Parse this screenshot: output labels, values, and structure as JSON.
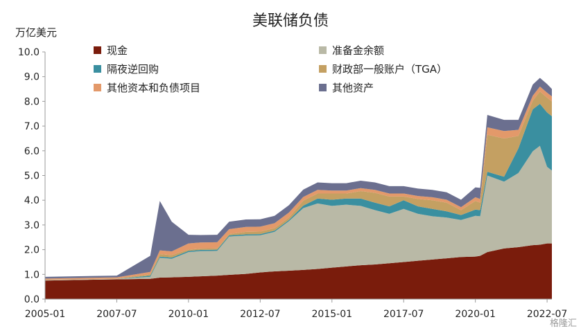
{
  "chart_data": {
    "type": "area",
    "title": "美联储负债",
    "ylabel": "万亿美元",
    "xlabel": "",
    "ylim": [
      0,
      10
    ],
    "yticks": [
      "0.0",
      "1.0",
      "2.0",
      "3.0",
      "4.0",
      "5.0",
      "6.0",
      "7.0",
      "8.0",
      "9.0",
      "10.0"
    ],
    "xtick_labels": [
      "2005-01",
      "2007-07",
      "2010-01",
      "2012-07",
      "2015-01",
      "2017-07",
      "2020-01",
      "2022-07"
    ],
    "x": [
      "2005-01",
      "2007-07",
      "2008-09",
      "2009-01",
      "2009-06",
      "2010-01",
      "2010-06",
      "2011-01",
      "2011-06",
      "2012-01",
      "2012-07",
      "2013-01",
      "2013-07",
      "2014-01",
      "2014-07",
      "2015-01",
      "2015-07",
      "2016-01",
      "2016-07",
      "2017-01",
      "2017-07",
      "2018-01",
      "2018-07",
      "2019-01",
      "2019-07",
      "2020-01",
      "2020-03",
      "2020-06",
      "2021-01",
      "2021-07",
      "2022-01",
      "2022-04",
      "2022-07",
      "2022-09"
    ],
    "series": [
      {
        "name": "现金",
        "color": "#7a1c0c",
        "values": [
          0.75,
          0.8,
          0.82,
          0.87,
          0.88,
          0.9,
          0.92,
          0.95,
          0.98,
          1.02,
          1.08,
          1.12,
          1.15,
          1.18,
          1.22,
          1.27,
          1.32,
          1.37,
          1.4,
          1.45,
          1.5,
          1.55,
          1.6,
          1.65,
          1.7,
          1.72,
          1.75,
          1.9,
          2.05,
          2.1,
          2.18,
          2.2,
          2.25,
          2.25
        ]
      },
      {
        "name": "准备金余额",
        "color": "#b9b9a6",
        "values": [
          0.02,
          0.02,
          0.08,
          0.8,
          0.75,
          1.0,
          1.02,
          1.0,
          1.55,
          1.55,
          1.5,
          1.6,
          2.0,
          2.5,
          2.65,
          2.5,
          2.5,
          2.4,
          2.2,
          2.0,
          2.15,
          1.9,
          1.75,
          1.65,
          1.5,
          1.65,
          1.6,
          3.1,
          2.7,
          3.0,
          3.8,
          4.0,
          3.1,
          2.95
        ]
      },
      {
        "name": "隔夜逆回购",
        "color": "#3a8fa0",
        "values": [
          0.0,
          0.0,
          0.05,
          0.05,
          0.05,
          0.05,
          0.05,
          0.05,
          0.05,
          0.05,
          0.05,
          0.05,
          0.05,
          0.1,
          0.2,
          0.25,
          0.25,
          0.3,
          0.3,
          0.3,
          0.35,
          0.3,
          0.3,
          0.25,
          0.2,
          0.25,
          0.25,
          0.15,
          0.2,
          1.0,
          1.7,
          1.7,
          2.2,
          2.2
        ]
      },
      {
        "name": "财政部一般账户（TGA）",
        "color": "#c4a062",
        "values": [
          0.01,
          0.01,
          0.05,
          0.1,
          0.1,
          0.05,
          0.05,
          0.05,
          0.05,
          0.1,
          0.1,
          0.1,
          0.1,
          0.2,
          0.2,
          0.25,
          0.2,
          0.3,
          0.4,
          0.4,
          0.15,
          0.3,
          0.35,
          0.35,
          0.2,
          0.35,
          0.3,
          1.5,
          1.55,
          0.5,
          0.35,
          0.5,
          0.6,
          0.6
        ]
      },
      {
        "name": "其他资本和负债项目",
        "color": "#e3996a",
        "values": [
          0.05,
          0.05,
          0.1,
          0.15,
          0.15,
          0.25,
          0.25,
          0.25,
          0.2,
          0.2,
          0.2,
          0.2,
          0.2,
          0.15,
          0.15,
          0.12,
          0.12,
          0.12,
          0.12,
          0.12,
          0.12,
          0.12,
          0.12,
          0.12,
          0.12,
          0.15,
          0.15,
          0.3,
          0.3,
          0.25,
          0.2,
          0.2,
          0.2,
          0.2
        ]
      },
      {
        "name": "其他资产",
        "color": "#6b6f8f",
        "values": [
          0.07,
          0.07,
          0.65,
          2.0,
          1.2,
          0.35,
          0.3,
          0.3,
          0.3,
          0.3,
          0.3,
          0.3,
          0.3,
          0.3,
          0.3,
          0.3,
          0.3,
          0.3,
          0.3,
          0.3,
          0.3,
          0.3,
          0.3,
          0.3,
          0.3,
          0.4,
          0.45,
          0.5,
          0.45,
          0.4,
          0.45,
          0.35,
          0.35,
          0.3
        ]
      }
    ],
    "legend_position": "top-left, two columns",
    "grid": false
  },
  "watermark": "格隆汇"
}
